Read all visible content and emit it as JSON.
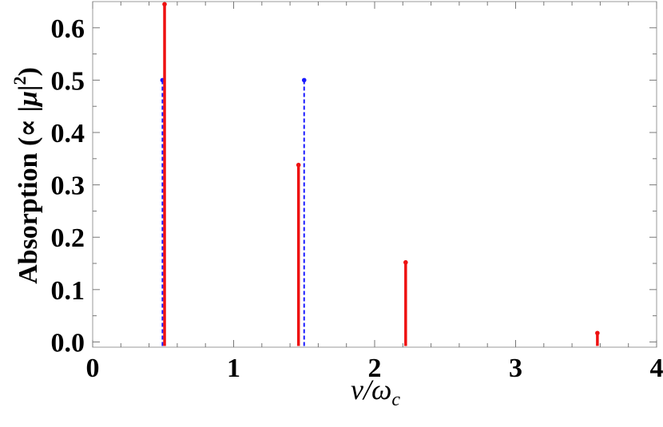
{
  "chart_data": {
    "type": "stem",
    "xlabel": "ν/ω_c",
    "xlabel_parts": {
      "main": "ν/ω",
      "sub": "c"
    },
    "ylabel": "Absorption (∝ |μ|²)",
    "ylabel_parts": {
      "prefix": "Absorption (∝ |",
      "mu": "μ",
      "bar": "|",
      "sup": "2",
      "suffix": ")"
    },
    "xlim": [
      0,
      4
    ],
    "ylim": [
      -0.01,
      0.65
    ],
    "xticks": [
      "0",
      "1",
      "2",
      "3",
      "4"
    ],
    "yticks": [
      "0.0",
      "0.1",
      "0.2",
      "0.3",
      "0.4",
      "0.5",
      "0.6"
    ],
    "grid": false,
    "series": [
      {
        "style": "dashed",
        "color": "#1a1aff",
        "points": [
          {
            "x": 0.495,
            "y": 0.5
          },
          {
            "x": 1.5,
            "y": 0.5
          }
        ]
      },
      {
        "style": "solid",
        "color": "#ee1111",
        "points": [
          {
            "x": 0.51,
            "y": 0.645
          },
          {
            "x": 1.46,
            "y": 0.338
          },
          {
            "x": 2.22,
            "y": 0.152
          },
          {
            "x": 3.58,
            "y": 0.017
          }
        ]
      }
    ]
  }
}
